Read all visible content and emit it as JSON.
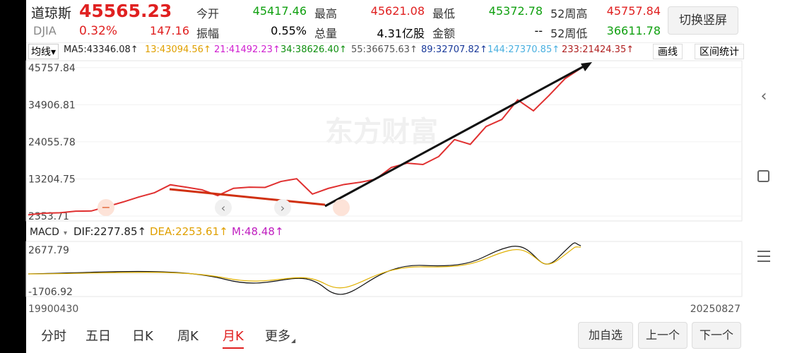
{
  "header": {
    "name": "道琼斯",
    "code": "DJIA",
    "price": "45565.23",
    "change_pct": "0.32%",
    "change": "147.16",
    "fields": [
      {
        "label": "今开",
        "value": "45417.46"
      },
      {
        "label": "最高",
        "value": "45621.08"
      },
      {
        "label": "最低",
        "value": "45372.78"
      },
      {
        "label": "52周高",
        "value": "45757.84"
      },
      {
        "label": "振幅",
        "value": "0.55%"
      },
      {
        "label": "总量",
        "value": "4.31亿股"
      },
      {
        "label": "金额",
        "value": "--"
      },
      {
        "label": "52周低",
        "value": "36611.78"
      }
    ],
    "switch_button": "切换竖屏"
  },
  "ma_bar": {
    "mode": "均线",
    "items": [
      "MA5:43346.08↑",
      "13:43094.56↑",
      "21:41492.23↑",
      "34:38626.40↑",
      "55:36675.63↑",
      "89:32707.82↑",
      "144:27370.85↑",
      "233:21424.35↑"
    ],
    "buttons": [
      "画线",
      "区间统计"
    ]
  },
  "watermark": "东方财富",
  "chart_data": {
    "type": "line",
    "categories": [
      "19900430",
      null,
      null,
      null,
      null,
      null,
      null,
      null,
      null,
      null,
      null,
      null,
      null,
      null,
      null,
      null,
      null,
      null,
      null,
      null,
      null,
      null,
      null,
      null,
      null,
      null,
      null,
      null,
      null,
      null,
      null,
      null,
      null,
      null,
      null,
      "20250827"
    ],
    "values": [
      2700,
      3168,
      3301,
      3754,
      3834,
      5117,
      6448,
      7908,
      9181,
      11497,
      10787,
      10021,
      8341,
      10453,
      10783,
      10717,
      12463,
      13264,
      8776,
      10428,
      11577,
      12217,
      13104,
      16576,
      17823,
      17425,
      19762,
      24719,
      23327,
      28538,
      30606,
      36338,
      33147,
      37689,
      42544,
      45565.23
    ],
    "color": "#e03030",
    "ylim": [
      900,
      47800
    ],
    "yticks": [
      2353.71,
      13204.75,
      24055.78,
      34906.81,
      45757.84
    ]
  },
  "macd_bar": {
    "name": "MACD",
    "dif": "DIF:2277.85↑",
    "dea": "DEA:2253.61↑",
    "m": "M:48.48↑",
    "top_label": "2677.79",
    "bottom_label": "-1706.92"
  },
  "tabs": [
    "分时",
    "五日",
    "日K",
    "周K",
    "月K",
    "更多"
  ],
  "buttons": [
    "加自选",
    "上一个",
    "下一个"
  ]
}
